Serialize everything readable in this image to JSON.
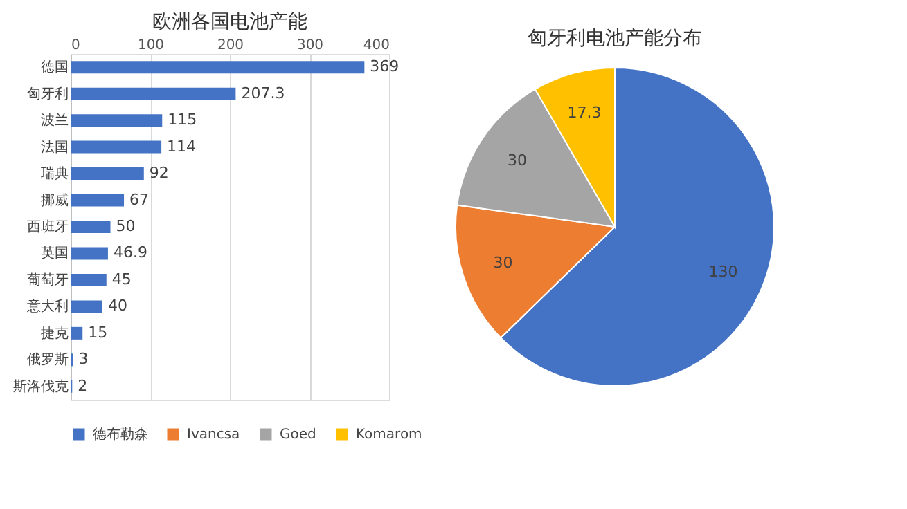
{
  "chart_data": [
    {
      "type": "bar",
      "title": "欧洲各国电池产能",
      "orientation": "horizontal",
      "categories": [
        "德国",
        "匈牙利",
        "波兰",
        "法国",
        "瑞典",
        "挪威",
        "西班牙",
        "英国",
        "葡萄牙",
        "意大利",
        "捷克",
        "俄罗斯",
        "斯洛伐克"
      ],
      "values": [
        369,
        207.3,
        115,
        114,
        92,
        67,
        50,
        46.9,
        45,
        40,
        15,
        3,
        2
      ],
      "color": "#4472c4",
      "xlim": [
        0,
        400
      ],
      "xticks": [
        0,
        100,
        200,
        300,
        400
      ],
      "grid": "x",
      "data_labels": true
    },
    {
      "type": "pie",
      "title": "匈牙利电池产能分布",
      "categories": [
        "德布勒森",
        "Ivancsa",
        "Goed",
        "Komarom"
      ],
      "values": [
        130,
        30,
        30,
        17.3
      ],
      "colors": [
        "#4472c4",
        "#ed7d31",
        "#a5a5a5",
        "#ffc000"
      ],
      "data_labels": true,
      "legend": "bottom"
    }
  ]
}
